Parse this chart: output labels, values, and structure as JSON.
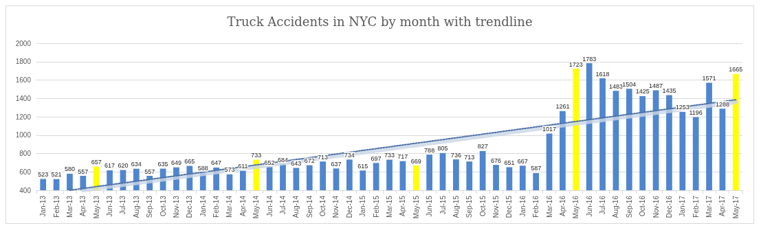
{
  "chart_data": {
    "type": "bar",
    "title": "Truck Accidents in NYC by month with trendline",
    "categories": [
      "Jan-13",
      "Feb-13",
      "Mar-13",
      "Apr-13",
      "May-13",
      "Jun-13",
      "Jul-13",
      "Aug-13",
      "Sep-13",
      "Oct-13",
      "Nov-13",
      "Dec-13",
      "Jan-14",
      "Feb-14",
      "Mar-14",
      "Apr-14",
      "May-14",
      "Jun-14",
      "Jul-14",
      "Aug-14",
      "Sep-14",
      "Oct-14",
      "Nov-14",
      "Dec-14",
      "Jan-15",
      "Feb-15",
      "Mar-15",
      "Apr-15",
      "May-15",
      "Jun-15",
      "Jul-15",
      "Aug-15",
      "Sep-15",
      "Oct-15",
      "Nov-15",
      "Dec-15",
      "Jan-16",
      "Feb-16",
      "Mar-16",
      "Apr-16",
      "May-16",
      "Jun-16",
      "Jul-16",
      "Aug-16",
      "Sep-16",
      "Oct-16",
      "Nov-16",
      "Dec-16",
      "Jan-17",
      "Feb-17",
      "Mar-17",
      "Apr-17",
      "May-17"
    ],
    "series": [
      {
        "colors": [
          "#4f86cf",
          "#4f86cf",
          "#4f86cf",
          "#4f86cf",
          "#ffff00",
          "#4f86cf",
          "#4f86cf",
          "#4f86cf",
          "#4f86cf",
          "#4f86cf",
          "#4f86cf",
          "#4f86cf",
          "#4f86cf",
          "#4f86cf",
          "#4f86cf",
          "#4f86cf",
          "#ffff00",
          "#4f86cf",
          "#4f86cf",
          "#4f86cf",
          "#4f86cf",
          "#4f86cf",
          "#4f86cf",
          "#4f86cf",
          "#4f86cf",
          "#4f86cf",
          "#4f86cf",
          "#4f86cf",
          "#ffff00",
          "#4f86cf",
          "#4f86cf",
          "#4f86cf",
          "#4f86cf",
          "#4f86cf",
          "#4f86cf",
          "#4f86cf",
          "#4f86cf",
          "#4f86cf",
          "#4f86cf",
          "#4f86cf",
          "#ffff00",
          "#4f86cf",
          "#4f86cf",
          "#4f86cf",
          "#4f86cf",
          "#4f86cf",
          "#4f86cf",
          "#4f86cf",
          "#4f86cf",
          "#4f86cf",
          "#4f86cf",
          "#4f86cf",
          "#ffff00"
        ],
        "values": [
          523,
          521,
          580,
          557,
          657,
          617,
          620,
          634,
          557,
          635,
          649,
          665,
          588,
          647,
          573,
          611,
          733,
          652,
          684,
          643,
          672,
          713,
          637,
          734,
          615,
          697,
          733,
          717,
          669,
          788,
          805,
          736,
          713,
          827,
          676,
          651,
          667,
          587,
          1017,
          1261,
          1723,
          1783,
          1618,
          1483,
          1504,
          1425,
          1487,
          1435,
          1253,
          1196,
          1571,
          1288,
          1665
        ],
        "data_labels": true
      },
      {
        "type": "line",
        "color": "#c9d6e6",
        "line_style": "solid",
        "x": [
          "Apr-13",
          "May-17"
        ],
        "values": [
          400,
          1360
        ]
      },
      {
        "type": "line",
        "color": "#4a6fa5",
        "line_style": "dotted",
        "x": [
          "Mar-13",
          "May-17"
        ],
        "values": [
          400,
          1385
        ]
      }
    ],
    "ylim": [
      400,
      2000
    ],
    "yticks": [
      400,
      600,
      800,
      1000,
      1200,
      1400,
      1600,
      1800,
      2000
    ],
    "grid": "y",
    "marker": "none"
  }
}
